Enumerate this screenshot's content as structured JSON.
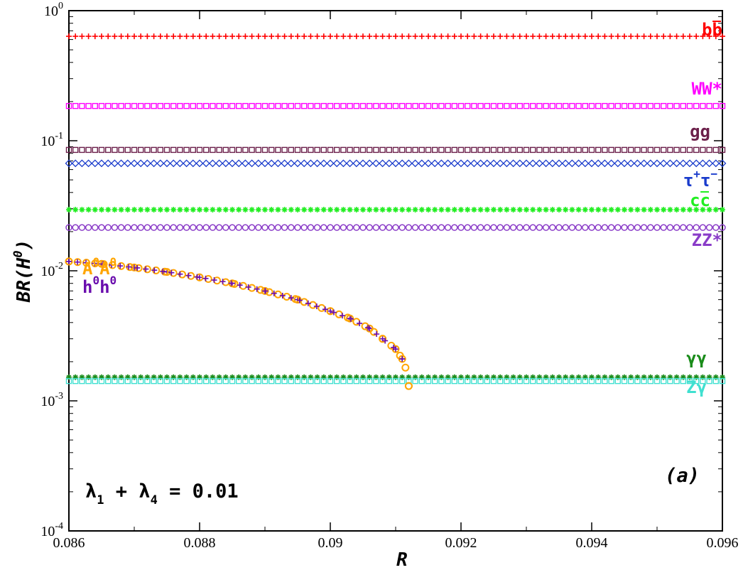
{
  "chart_data": {
    "type": "scatter",
    "x_label": "R",
    "y_label": {
      "base": "BR(H",
      "sup": "0",
      "close": ")"
    },
    "x_range": [
      0.086,
      0.096
    ],
    "y_range": [
      0.0001,
      1
    ],
    "y_scale": "log",
    "x_ticks": [
      "0.086",
      "0.088",
      "0.09",
      "0.092",
      "0.094",
      "0.096"
    ],
    "y_ticks": [
      {
        "base": "10",
        "exp": "-4",
        "value": 0.0001
      },
      {
        "base": "10",
        "exp": "-3",
        "value": 0.001
      },
      {
        "base": "10",
        "exp": "-2",
        "value": 0.01
      },
      {
        "base": "10",
        "exp": "-1",
        "value": 0.1
      },
      {
        "base": "10",
        "exp": "0",
        "value": 1
      }
    ],
    "annotation": {
      "lambda1": "λ",
      "sub1": "1",
      "plus": " + ",
      "lambda4": "λ",
      "sub4": "4",
      "eq": " = 0.01"
    },
    "panel_label": "(a)",
    "series": [
      {
        "label": "bb̄",
        "name_parts": [
          "bb"
        ],
        "color": "#ff0000",
        "marker": "plus",
        "flat": 0.635
      },
      {
        "label": "WW*",
        "name_parts": [
          "WW*"
        ],
        "color": "#ff00ff",
        "marker": "square",
        "flat": 0.185
      },
      {
        "label": "gg",
        "name_parts": [
          "gg"
        ],
        "color": "#6b1f4a",
        "marker": "square",
        "flat": 0.085
      },
      {
        "label": "τ+τ−",
        "name_parts": [
          "τ",
          "+",
          "τ",
          "−"
        ],
        "color": "#1a3ccc",
        "marker": "diamond",
        "flat": 0.067
      },
      {
        "label": "cc̄",
        "name_parts": [
          "cc"
        ],
        "color": "#22ee22",
        "marker": "star",
        "flat": 0.0295
      },
      {
        "label": "ZZ*",
        "name_parts": [
          "ZZ*"
        ],
        "color": "#8a3cc8",
        "marker": "circle",
        "flat": 0.0215
      },
      {
        "label": "γγ",
        "name_parts": [
          "γγ"
        ],
        "color": "#1a8c1a",
        "marker": "star",
        "flat": 0.00152
      },
      {
        "label": "Zγ",
        "name_parts": [
          "Zγ"
        ],
        "color": "#40e0d0",
        "marker": "square",
        "flat": 0.00142
      },
      {
        "label": "A0A0",
        "name_parts": [
          "A",
          "0",
          "A",
          "0"
        ],
        "color": "#ffa500",
        "marker": "circle",
        "x": [
          0.086,
          0.0865,
          0.087,
          0.0875,
          0.088,
          0.0885,
          0.089,
          0.0895,
          0.09,
          0.0903,
          0.0906,
          0.0908,
          0.091,
          0.0911,
          0.09115,
          0.0912
        ],
        "y": [
          0.0118,
          0.0113,
          0.0106,
          0.0098,
          0.0089,
          0.008,
          0.007,
          0.006,
          0.0049,
          0.0043,
          0.0036,
          0.003,
          0.0025,
          0.0021,
          0.0018,
          0.0013
        ]
      },
      {
        "label": "h0h0",
        "name_parts": [
          "h",
          "0",
          "h",
          "0"
        ],
        "color": "#6a0dad",
        "marker": "plus",
        "x": [
          0.086,
          0.0865,
          0.087,
          0.0875,
          0.088,
          0.0885,
          0.089,
          0.0895,
          0.09,
          0.0903,
          0.0906,
          0.0908,
          0.091,
          0.0911
        ],
        "y": [
          0.0118,
          0.0113,
          0.0106,
          0.0098,
          0.0089,
          0.008,
          0.007,
          0.006,
          0.0049,
          0.0043,
          0.0036,
          0.003,
          0.0025,
          0.0021
        ]
      }
    ]
  }
}
